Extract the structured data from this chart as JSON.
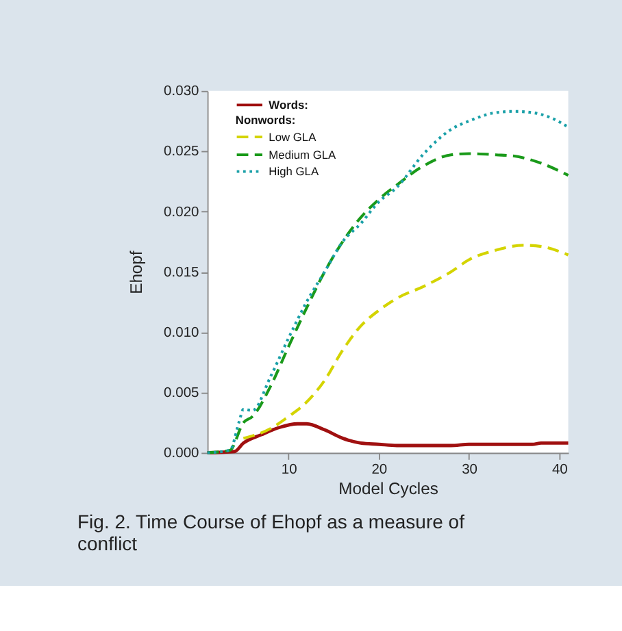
{
  "chart_data": {
    "type": "line",
    "xlabel": "Model Cycles",
    "ylabel": "Ehopf",
    "xlim": [
      1,
      41
    ],
    "xticks": [
      10,
      20,
      30,
      40
    ],
    "ylim": [
      0,
      0.03
    ],
    "yticks": [
      {
        "value": 0,
        "label": "0.000"
      },
      {
        "value": 0.005,
        "label": "0.005"
      },
      {
        "value": 0.01,
        "label": "0.010"
      },
      {
        "value": 0.015,
        "label": "0.015"
      },
      {
        "value": 0.02,
        "label": "0.020"
      },
      {
        "value": 0.025,
        "label": "0.025"
      },
      {
        "value": 0.03,
        "label": "0.030"
      }
    ],
    "grid": false,
    "legend": "top left",
    "marker": "none",
    "annotations": [
      "Nonwords:",
      "Fig. 2. Time Course of Ehopf as a measure of conflict"
    ],
    "series": [
      {
        "name": "Words:",
        "color": "#a01010",
        "line_style": "solid",
        "x": [
          1,
          4,
          5,
          7,
          9,
          11,
          12,
          14,
          16,
          18,
          20,
          22,
          28,
          30,
          37,
          38,
          41
        ],
        "values": [
          0,
          0.0001,
          0.0008,
          0.0015,
          0.0021,
          0.0024,
          0.0024,
          0.0019,
          0.0012,
          0.0008,
          0.0007,
          0.0006,
          0.0006,
          0.0007,
          0.0007,
          0.0008,
          0.0008
        ]
      },
      {
        "name": "Low GLA",
        "color": "#d4d400",
        "line_style": "dashed",
        "x": [
          5,
          8,
          10,
          12,
          14,
          16,
          18,
          20,
          22,
          25,
          28,
          30,
          33,
          36,
          38,
          41
        ],
        "values": [
          0.0012,
          0.002,
          0.003,
          0.0042,
          0.006,
          0.0085,
          0.0105,
          0.0118,
          0.0128,
          0.0138,
          0.015,
          0.016,
          0.0168,
          0.0172,
          0.0171,
          0.0164
        ]
      },
      {
        "name": "Medium GLA",
        "color": "#1a9a1a",
        "line_style": "dashed",
        "x": [
          1,
          3.5,
          5,
          6,
          8,
          10,
          12,
          14,
          16,
          18,
          20,
          22,
          25,
          28,
          30,
          33,
          35,
          38,
          41
        ],
        "values": [
          0,
          0.0002,
          0.0025,
          0.003,
          0.0055,
          0.0088,
          0.012,
          0.015,
          0.0175,
          0.0195,
          0.021,
          0.0222,
          0.0238,
          0.0247,
          0.0248,
          0.0247,
          0.0246,
          0.024,
          0.023
        ]
      },
      {
        "name": "High GLA",
        "color": "#1aa0a8",
        "line_style": "dotted",
        "x": [
          1,
          3.5,
          4.5,
          5,
          6,
          8,
          10,
          12,
          14,
          16,
          18,
          20,
          22,
          25,
          28,
          30,
          33,
          35,
          37,
          39,
          41
        ],
        "values": [
          0,
          0.0002,
          0.0025,
          0.0036,
          0.0035,
          0.0063,
          0.0095,
          0.0125,
          0.015,
          0.0175,
          0.019,
          0.0208,
          0.022,
          0.0248,
          0.0268,
          0.0275,
          0.0282,
          0.0283,
          0.0282,
          0.0278,
          0.027
        ]
      }
    ]
  }
}
